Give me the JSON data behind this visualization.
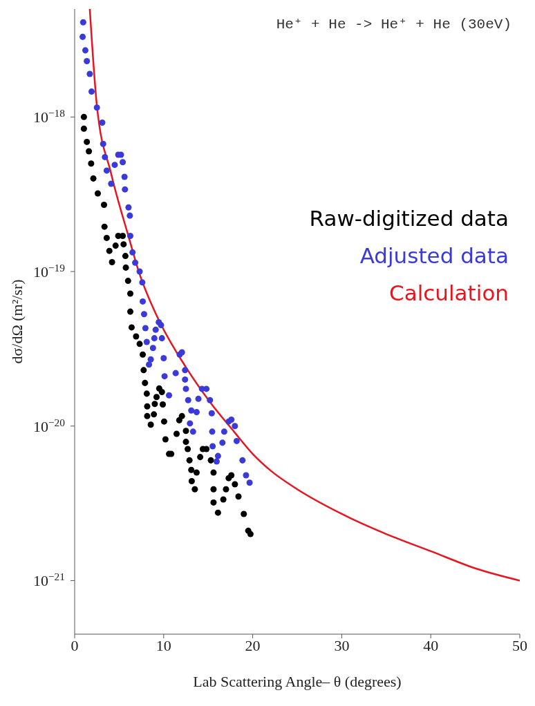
{
  "chart_data": {
    "type": "scatter",
    "xlabel": "Lab Scattering Angle– θ (degrees)",
    "ylabel": "dσ/dΩ (m²/sr)",
    "annotations": [
      "He⁺ + He -> He⁺ + He (30eV)"
    ],
    "xlim": [
      0,
      50
    ],
    "xticks": [
      0,
      10,
      20,
      30,
      40,
      50
    ],
    "ylim": [
      4.5e-22,
      5e-18
    ],
    "yticks": [
      {
        "value": 1e-21,
        "label": "10$^{−21}$"
      },
      {
        "value": 1e-20,
        "label": "10$^{−20}$"
      },
      {
        "value": 1e-19,
        "label": "10$^{−19}$"
      },
      {
        "value": 1e-18,
        "label": "10$^{−18}$"
      }
    ],
    "log": "y",
    "legend": "right",
    "marker": "circle",
    "series": [
      {
        "name": "Raw-digitized data",
        "color": "#000000",
        "x": [
          1.04,
          1.04,
          1.37,
          1.6,
          1.85,
          2.1,
          2.6,
          3.3,
          3.35,
          3.6,
          3.9,
          4.2,
          4.6,
          4.9,
          5.4,
          5.5,
          5.7,
          5.75,
          6.0,
          6.25,
          6.25,
          6.4,
          6.9,
          7.3,
          7.65,
          7.75,
          7.9,
          9.5,
          9.8,
          9.2,
          8.1,
          9.0,
          9.9,
          8.15,
          8.15,
          8.9,
          8.55,
          10.05,
          11.75,
          12.05,
          11.45,
          12.5,
          10.2,
          12.5,
          10.6,
          10.85,
          12.7,
          14.4,
          14.8,
          14.1,
          12.9,
          15.3,
          13.1,
          13.7,
          15.6,
          13.15,
          13.5,
          15.6,
          17.0,
          17.3,
          17.6,
          18.0,
          18.4,
          16.7,
          15.6,
          16.1,
          19.0,
          19.5,
          19.75
        ],
        "values": [
          1e-18,
          8.4e-19,
          6.9e-19,
          6e-19,
          5e-19,
          4e-19,
          3.2e-19,
          2.7e-19,
          1.95e-19,
          1.65e-19,
          1.36e-19,
          1.15e-19,
          1.47e-19,
          1.7e-19,
          1.7e-19,
          1.5e-19,
          1.26e-19,
          1.06e-19,
          8.7e-20,
          7.2e-20,
          5.5e-20,
          4.35e-20,
          3.8e-20,
          3.4e-20,
          2.9e-20,
          2.3e-20,
          1.9e-20,
          1.75e-20,
          1.66e-20,
          1.54e-20,
          1.62e-20,
          1.39e-20,
          1.38e-20,
          1.34e-20,
          1.16e-20,
          1.19e-20,
          1.02e-20,
          1.07e-20,
          1.09e-20,
          1.16e-20,
          8.9e-21,
          9.3e-21,
          8.2e-21,
          7.9e-21,
          6.6e-21,
          6.6e-21,
          7.1e-21,
          7.1e-21,
          7.1e-21,
          6.3e-21,
          6e-21,
          6e-21,
          5.2e-21,
          5e-21,
          5e-21,
          4.4e-21,
          3.9e-21,
          3.9e-21,
          3.9e-21,
          4.6e-21,
          4.8e-21,
          4.2e-21,
          3.5e-21,
          3.35e-21,
          3.2e-21,
          2.75e-21,
          2.7e-21,
          2.1e-21,
          2e-21
        ]
      },
      {
        "name": "Adjusted data",
        "color": "#3a3ad8",
        "x": [
          0.96,
          0.9,
          1.2,
          1.37,
          1.7,
          1.9,
          2.5,
          3.1,
          3.2,
          3.4,
          3.6,
          4.1,
          4.5,
          4.9,
          5.2,
          5.4,
          5.6,
          5.65,
          6.05,
          6.2,
          6.25,
          6.5,
          6.8,
          7.3,
          7.6,
          7.65,
          7.8,
          7.95,
          9.45,
          9.7,
          9.1,
          8.95,
          9.8,
          8.1,
          8.8,
          8.55,
          8.35,
          10.0,
          11.8,
          12.05,
          11.35,
          10.1,
          12.4,
          12.4,
          12.5,
          10.6,
          14.3,
          14.8,
          13.9,
          15.2,
          12.75,
          13.1,
          13.7,
          15.4,
          12.95,
          13.3,
          15.45,
          16.8,
          17.3,
          17.6,
          18.0,
          18.2,
          16.6,
          15.5,
          16.1,
          15.95,
          18.85,
          19.25,
          19.65
        ],
        "values": [
          4.1e-18,
          3.3e-18,
          2.7e-18,
          2.3e-18,
          1.9e-18,
          1.46e-18,
          1.15e-18,
          9.2e-19,
          6.7e-19,
          5.5e-19,
          4.5e-19,
          3.7e-19,
          4.9e-19,
          5.7e-19,
          5.7e-19,
          5.1e-19,
          4.1e-19,
          3.4e-19,
          2.6e-19,
          2.3e-19,
          1.7e-19,
          1.33e-19,
          1.14e-19,
          1e-19,
          8.5e-20,
          6.4e-20,
          5.3e-20,
          4.3e-20,
          4.7e-20,
          4.5e-20,
          4.2e-20,
          3.7e-20,
          3.7e-20,
          3.5e-20,
          3.2e-20,
          2.7e-20,
          2.5e-20,
          2.75e-20,
          2.9e-20,
          3e-20,
          2.2e-20,
          2.1e-20,
          2.3e-20,
          2e-20,
          1.74e-20,
          1.58e-20,
          1.74e-20,
          1.74e-20,
          1.5e-20,
          1.47e-20,
          1.47e-20,
          1.26e-20,
          1.23e-20,
          1.21e-20,
          1.04e-20,
          9.2e-21,
          9.2e-21,
          9.2e-21,
          1.07e-20,
          1.1e-20,
          1e-20,
          8e-21,
          7.8e-21,
          7.4e-21,
          6.4e-21,
          5.9e-21,
          6e-21,
          4.8e-21,
          4.3e-21
        ]
      },
      {
        "name": "Calculation",
        "color": "#e8141e",
        "type": "line",
        "marker": "none",
        "line_style": "solid",
        "x": [
          1.7,
          2.5,
          4.1,
          6.1,
          7.2,
          9.2,
          12.5,
          15.2,
          17.9,
          20,
          22.1,
          25,
          30,
          35,
          40,
          45,
          50
        ],
        "values": [
          5e-18,
          1.18e-18,
          4.3e-19,
          1.65e-19,
          1e-19,
          5.2e-20,
          2.4e-20,
          1.43e-20,
          9.2e-21,
          6.6e-21,
          5.1e-21,
          3.9e-21,
          2.7e-21,
          2e-21,
          1.55e-21,
          1.2e-21,
          1e-21
        ]
      }
    ]
  }
}
